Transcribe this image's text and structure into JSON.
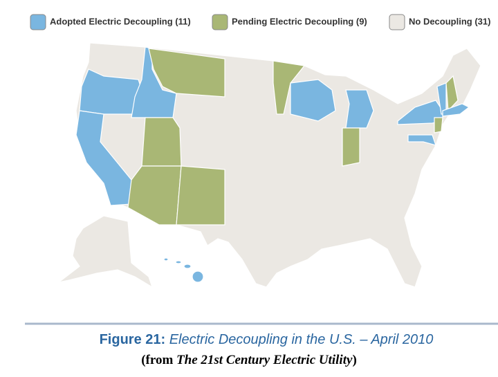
{
  "legend": [
    {
      "label": "Adopted Electric Decoupling (11)",
      "color": "#7ab6e0"
    },
    {
      "label": "Pending Electric Decoupling (9)",
      "color": "#a9b775"
    },
    {
      "label": "No Decoupling (31)",
      "color": "#ebe8e3"
    }
  ],
  "caption": {
    "figure": "Figure 21:",
    "title": "Electric Decoupling in the U.S. – April 2010"
  },
  "source": {
    "prefix": "(from",
    "book": "The 21st Century Electric Utility",
    "suffix": ")"
  }
}
